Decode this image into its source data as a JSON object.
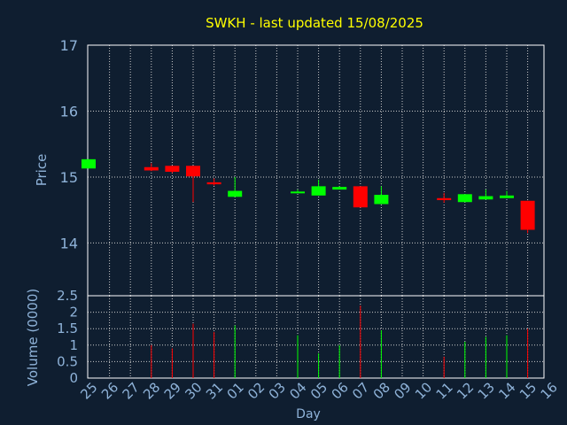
{
  "colors": {
    "background": "#0f1e30",
    "title": "#ffff00",
    "axis_text": "#8fb3d9",
    "grid": "#cccccc",
    "up": "#00ff00",
    "down": "#ff0000"
  },
  "chart_data": {
    "type": "candlestick",
    "title": "SWKH - last updated 15/08/2025",
    "x_labels": [
      "25",
      "26",
      "27",
      "28",
      "29",
      "30",
      "31",
      "01",
      "02",
      "03",
      "04",
      "05",
      "06",
      "07",
      "08",
      "09",
      "10",
      "11",
      "12",
      "13",
      "14",
      "15",
      "16"
    ],
    "xlabel": "Day",
    "price": {
      "ylabel": "Price",
      "ylim": [
        13.2,
        17
      ],
      "ticks": [
        "14",
        "15",
        "16",
        "17"
      ],
      "candles": [
        {
          "x": 0,
          "open": 15.13,
          "high": 15.27,
          "low": 15.13,
          "close": 15.27,
          "dir": "up"
        },
        {
          "x": 3,
          "open": 15.15,
          "high": 15.21,
          "low": 15.09,
          "close": 15.1,
          "dir": "down"
        },
        {
          "x": 4,
          "open": 15.17,
          "high": 15.17,
          "low": 15.06,
          "close": 15.08,
          "dir": "down"
        },
        {
          "x": 5,
          "open": 15.17,
          "high": 15.17,
          "low": 14.62,
          "close": 15.01,
          "dir": "down"
        },
        {
          "x": 6,
          "open": 14.92,
          "high": 14.98,
          "low": 14.87,
          "close": 14.89,
          "dir": "down"
        },
        {
          "x": 7,
          "open": 14.7,
          "high": 15.0,
          "low": 14.7,
          "close": 14.79,
          "dir": "up"
        },
        {
          "x": 10,
          "open": 14.76,
          "high": 14.81,
          "low": 14.76,
          "close": 14.78,
          "dir": "up"
        },
        {
          "x": 11,
          "open": 14.72,
          "high": 14.96,
          "low": 14.72,
          "close": 14.86,
          "dir": "up"
        },
        {
          "x": 12,
          "open": 14.81,
          "high": 14.86,
          "low": 14.81,
          "close": 14.85,
          "dir": "up"
        },
        {
          "x": 13,
          "open": 14.86,
          "high": 14.86,
          "low": 14.54,
          "close": 14.54,
          "dir": "down"
        },
        {
          "x": 14,
          "open": 14.59,
          "high": 14.86,
          "low": 14.59,
          "close": 14.73,
          "dir": "up"
        },
        {
          "x": 17,
          "open": 14.68,
          "high": 14.76,
          "low": 14.61,
          "close": 14.65,
          "dir": "down"
        },
        {
          "x": 18,
          "open": 14.62,
          "high": 14.74,
          "low": 14.62,
          "close": 14.74,
          "dir": "up"
        },
        {
          "x": 19,
          "open": 14.66,
          "high": 14.81,
          "low": 14.66,
          "close": 14.71,
          "dir": "up"
        },
        {
          "x": 20,
          "open": 14.68,
          "high": 14.79,
          "low": 14.68,
          "close": 14.72,
          "dir": "up"
        },
        {
          "x": 21,
          "open": 14.64,
          "high": 14.64,
          "low": 14.15,
          "close": 14.2,
          "dir": "down"
        }
      ]
    },
    "volume": {
      "ylabel": "Volume (0000)",
      "ylim": [
        0,
        2.5
      ],
      "ticks": [
        "0",
        "0.5",
        "1",
        "1.5",
        "2",
        "2.5"
      ],
      "bars": [
        {
          "x": 3,
          "value": 1.0,
          "dir": "down"
        },
        {
          "x": 4,
          "value": 0.9,
          "dir": "down"
        },
        {
          "x": 5,
          "value": 1.65,
          "dir": "down"
        },
        {
          "x": 6,
          "value": 1.4,
          "dir": "down"
        },
        {
          "x": 7,
          "value": 1.6,
          "dir": "up"
        },
        {
          "x": 10,
          "value": 1.3,
          "dir": "up"
        },
        {
          "x": 11,
          "value": 0.75,
          "dir": "up"
        },
        {
          "x": 12,
          "value": 1.0,
          "dir": "up"
        },
        {
          "x": 13,
          "value": 2.2,
          "dir": "down"
        },
        {
          "x": 14,
          "value": 1.45,
          "dir": "up"
        },
        {
          "x": 17,
          "value": 0.65,
          "dir": "down"
        },
        {
          "x": 18,
          "value": 1.1,
          "dir": "up"
        },
        {
          "x": 19,
          "value": 1.25,
          "dir": "up"
        },
        {
          "x": 20,
          "value": 1.3,
          "dir": "up"
        },
        {
          "x": 21,
          "value": 1.5,
          "dir": "down"
        }
      ]
    }
  }
}
